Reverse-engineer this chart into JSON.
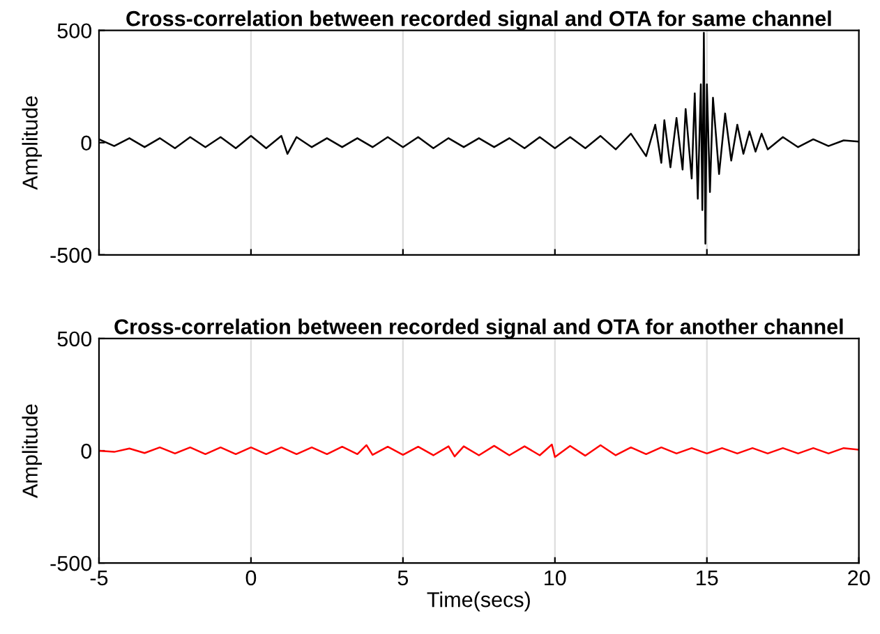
{
  "chart_data": [
    {
      "type": "line",
      "title": "Cross-correlation between recorded signal and OTA for same channel",
      "ylabel": "Amplitude",
      "xlim": [
        -5,
        20
      ],
      "ylim": [
        -500,
        500
      ],
      "xticks": [
        -5,
        0,
        5,
        10,
        15,
        20
      ],
      "yticks": [
        -500,
        0,
        500
      ],
      "grid": "x",
      "tick_labels": "y",
      "legend": false,
      "series": [
        {
          "color": "#000000",
          "x": [
            -5,
            -4.5,
            -4,
            -3.5,
            -3,
            -2.5,
            -2,
            -1.5,
            -1,
            -0.5,
            0,
            0.5,
            1,
            1.2,
            1.5,
            2,
            2.5,
            3,
            3.5,
            4,
            4.5,
            5,
            5.5,
            6,
            6.5,
            7,
            7.5,
            8,
            8.5,
            9,
            9.5,
            10,
            10.5,
            11,
            11.5,
            12,
            12.5,
            13,
            13.3,
            13.5,
            13.6,
            13.8,
            14,
            14.2,
            14.3,
            14.5,
            14.6,
            14.7,
            14.8,
            14.85,
            14.9,
            14.95,
            15,
            15.1,
            15.2,
            15.4,
            15.6,
            15.8,
            16,
            16.2,
            16.4,
            16.6,
            16.8,
            17,
            17.5,
            18,
            18.5,
            19,
            19.5,
            20
          ],
          "values": [
            15,
            -15,
            20,
            -20,
            20,
            -25,
            25,
            -20,
            25,
            -25,
            30,
            -25,
            30,
            -50,
            25,
            -20,
            20,
            -20,
            20,
            -20,
            25,
            -20,
            25,
            -25,
            20,
            -20,
            20,
            -20,
            20,
            -25,
            25,
            -25,
            25,
            -25,
            30,
            -30,
            40,
            -60,
            80,
            -90,
            100,
            -110,
            110,
            -120,
            150,
            -160,
            220,
            -250,
            260,
            -300,
            490,
            -450,
            260,
            -220,
            200,
            -140,
            130,
            -80,
            80,
            -50,
            50,
            -40,
            40,
            -30,
            25,
            -20,
            15,
            -15,
            10,
            5
          ]
        }
      ]
    },
    {
      "type": "line",
      "title": "Cross-correlation between recorded signal and OTA for another channel",
      "xlabel": "Time(secs)",
      "ylabel": "Amplitude",
      "xlim": [
        -5,
        20
      ],
      "ylim": [
        -500,
        500
      ],
      "xticks": [
        -5,
        0,
        5,
        10,
        15,
        20
      ],
      "yticks": [
        -500,
        0,
        500
      ],
      "grid": "x",
      "legend": false,
      "series": [
        {
          "color": "#ff0000",
          "x": [
            -5,
            -4.5,
            -4,
            -3.5,
            -3,
            -2.5,
            -2,
            -1.5,
            -1,
            -0.5,
            0,
            0.5,
            1,
            1.5,
            2,
            2.5,
            3,
            3.5,
            3.8,
            4,
            4.5,
            5,
            5.5,
            6,
            6.5,
            6.7,
            7,
            7.5,
            8,
            8.5,
            9,
            9.5,
            9.9,
            10,
            10.5,
            11,
            11.5,
            12,
            12.5,
            13,
            13.5,
            14,
            14.5,
            15,
            15.5,
            16,
            16.5,
            17,
            17.5,
            18,
            18.5,
            19,
            19.5,
            20
          ],
          "values": [
            0,
            -5,
            10,
            -10,
            15,
            -12,
            15,
            -15,
            15,
            -15,
            15,
            -15,
            15,
            -15,
            15,
            -15,
            18,
            -15,
            25,
            -18,
            18,
            -18,
            18,
            -20,
            20,
            -25,
            20,
            -20,
            22,
            -20,
            20,
            -20,
            28,
            -28,
            22,
            -22,
            25,
            -20,
            15,
            -15,
            15,
            -12,
            12,
            -12,
            12,
            -12,
            12,
            -12,
            12,
            -12,
            12,
            -12,
            12,
            5
          ]
        }
      ]
    }
  ]
}
